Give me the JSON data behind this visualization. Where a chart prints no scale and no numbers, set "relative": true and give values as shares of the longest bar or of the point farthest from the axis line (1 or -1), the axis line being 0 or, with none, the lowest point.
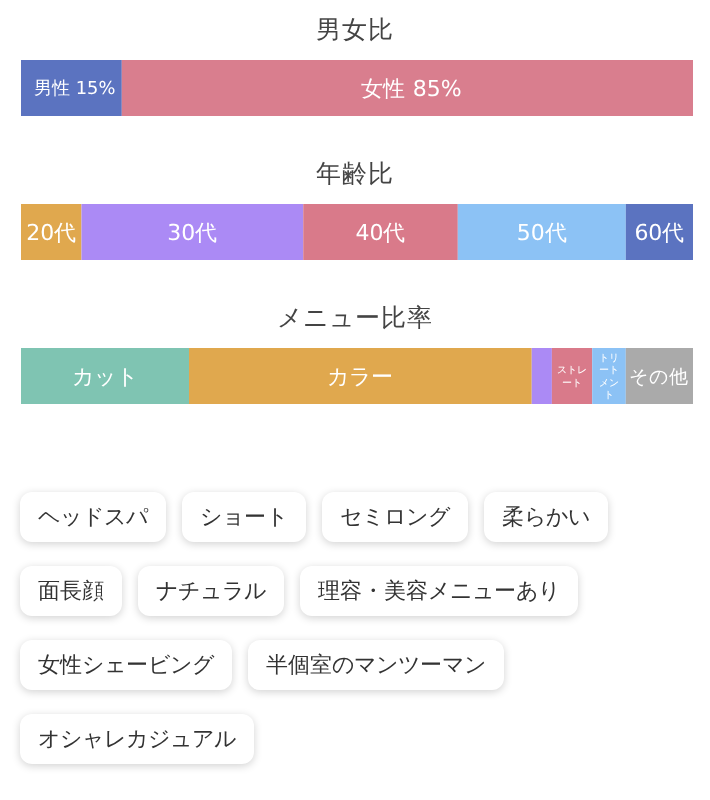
{
  "chart_data": [
    {
      "type": "bar",
      "orientation": "horizontal",
      "stacked": true,
      "title": "男女比",
      "categories": [
        null
      ],
      "series": [
        {
          "name": "男性",
          "color": "#5b73c0",
          "values": [
            15
          ],
          "value_labels": [
            "15%"
          ]
        },
        {
          "name": "女性",
          "color": "#d97e8e",
          "values": [
            85
          ],
          "value_labels": [
            "85%"
          ]
        }
      ]
    },
    {
      "type": "bar",
      "orientation": "horizontal",
      "stacked": true,
      "relative": true,
      "title": "年齢比",
      "categories": [
        null
      ],
      "series": [
        {
          "name": "20代",
          "color": "#e0a84e",
          "values": [
            0.09
          ]
        },
        {
          "name": "30代",
          "color": "#ab8af5",
          "values": [
            0.33
          ]
        },
        {
          "name": "40代",
          "color": "#d97a8a",
          "values": [
            0.23
          ]
        },
        {
          "name": "50代",
          "color": "#8cc2f5",
          "values": [
            0.25
          ]
        },
        {
          "name": "60代",
          "color": "#5b73c0",
          "values": [
            0.1
          ]
        }
      ]
    },
    {
      "type": "bar",
      "orientation": "horizontal",
      "stacked": true,
      "relative": true,
      "title": "メニュー比率",
      "categories": [
        null
      ],
      "series": [
        {
          "name": "カット",
          "color": "#7fc4b2",
          "values": [
            0.25
          ]
        },
        {
          "name": "カラー",
          "color": "#e0a84e",
          "values": [
            0.51
          ]
        },
        {
          "color": "#ab8af5",
          "values": [
            0.03
          ]
        },
        {
          "name": "ストレート",
          "color": "#d97a8a",
          "values": [
            0.06
          ]
        },
        {
          "name": "トリートメント",
          "color": "#8cc2f5",
          "values": [
            0.05
          ]
        },
        {
          "name": "その他",
          "color": "#aaaaaa",
          "values": [
            0.1
          ]
        }
      ]
    },
    {
      "type": "other",
      "annotations": [
        "ヘッドスパ",
        "ショート",
        "セミロング",
        "柔らかい",
        "面長顔",
        "ナチュラル",
        "理容・美容メニューあり",
        "女性シェービング",
        "半個室のマンツーマン",
        "オシャレカジュアル"
      ]
    }
  ]
}
